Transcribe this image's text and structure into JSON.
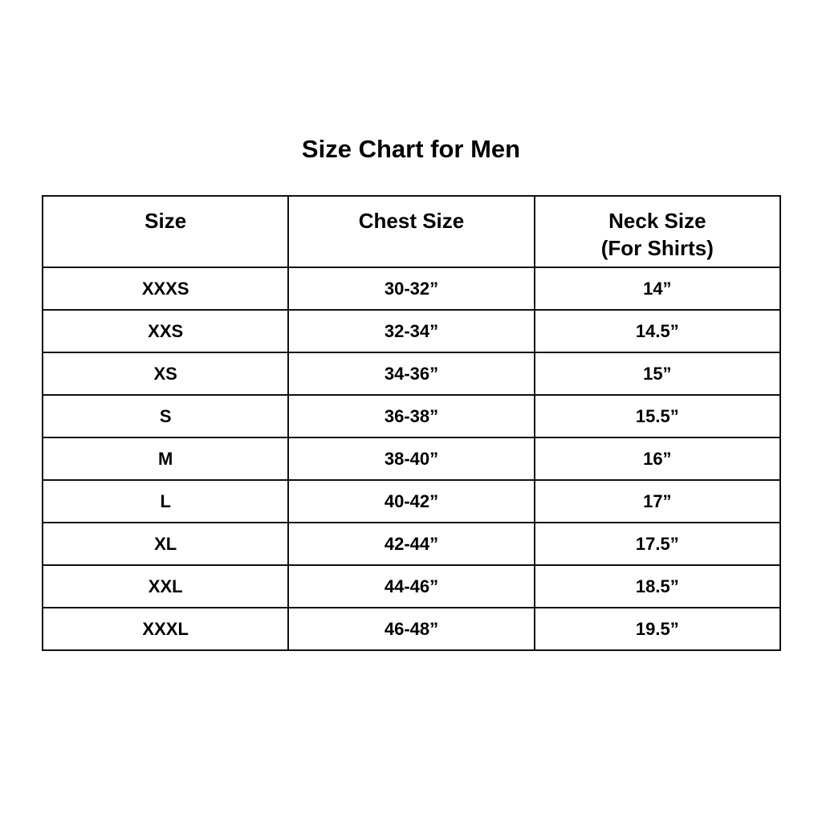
{
  "title": "Size Chart for Men",
  "columns": [
    {
      "label": "Size"
    },
    {
      "label": "Chest Size"
    },
    {
      "label": "Neck Size",
      "sublabel": "(For Shirts)"
    }
  ],
  "rows": [
    [
      "XXXS",
      "30-32”",
      "14”"
    ],
    [
      "XXS",
      "32-34”",
      "14.5”"
    ],
    [
      "XS",
      "34-36”",
      "15”"
    ],
    [
      "S",
      "36-38”",
      "15.5”"
    ],
    [
      "M",
      "38-40”",
      "16”"
    ],
    [
      "L",
      "40-42”",
      "17”"
    ],
    [
      "XL",
      "42-44”",
      "17.5”"
    ],
    [
      "XXL",
      "44-46”",
      "18.5”"
    ],
    [
      "XXXL",
      "46-48”",
      "19.5”"
    ]
  ]
}
